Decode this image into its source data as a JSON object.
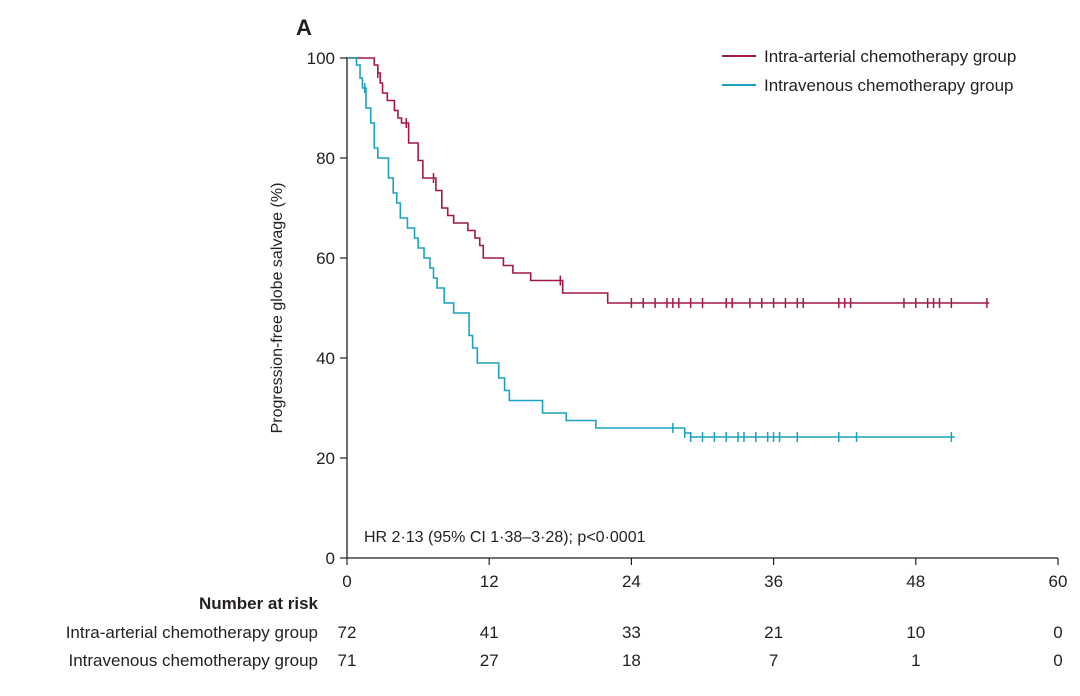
{
  "chart_data": {
    "type": "line",
    "subtype": "kaplan-meier",
    "panel_label": "A",
    "ylabel": "Progression-free globe salvage (%)",
    "xlabel": "",
    "xlim": [
      0,
      60
    ],
    "ylim": [
      0,
      100
    ],
    "x_ticks": [
      "0",
      "12",
      "24",
      "36",
      "48",
      "60"
    ],
    "y_ticks": [
      "0",
      "20",
      "40",
      "60",
      "80",
      "100"
    ],
    "grid": false,
    "legend_position": "top-right",
    "annotation": "HR 2·13 (95% CI 1·38–3·28); p<0·0001",
    "series": [
      {
        "name": "Intra-arterial chemotherapy group",
        "color": "#a3174a",
        "steps": [
          [
            0,
            100
          ],
          [
            2.3,
            98.6
          ],
          [
            2.6,
            97
          ],
          [
            2.8,
            95
          ],
          [
            3,
            93
          ],
          [
            3.4,
            91.5
          ],
          [
            4,
            89.5
          ],
          [
            4.3,
            88
          ],
          [
            4.6,
            87
          ],
          [
            5.2,
            83
          ],
          [
            6,
            79.5
          ],
          [
            6.4,
            76
          ],
          [
            7.5,
            73.5
          ],
          [
            8,
            70
          ],
          [
            8.5,
            68.5
          ],
          [
            9,
            67
          ],
          [
            10.2,
            65.5
          ],
          [
            10.8,
            64
          ],
          [
            11.2,
            62.5
          ],
          [
            11.5,
            60
          ],
          [
            13.2,
            58.5
          ],
          [
            14,
            57
          ],
          [
            15.5,
            55.5
          ],
          [
            18.2,
            53
          ],
          [
            22,
            51
          ]
        ],
        "end_x": 54.2,
        "censor_x": [
          2.6,
          5,
          7.3,
          18,
          24,
          25,
          26,
          27,
          27.5,
          28,
          29,
          30,
          32,
          32.5,
          34,
          35,
          36,
          37,
          38,
          38.5,
          41.5,
          42,
          42.5,
          47,
          48,
          49,
          49.5,
          50,
          51,
          54
        ]
      },
      {
        "name": "Intravenous chemotherapy group",
        "color": "#1aa2c0",
        "steps": [
          [
            0,
            100
          ],
          [
            0.8,
            98.6
          ],
          [
            1.1,
            96
          ],
          [
            1.3,
            94
          ],
          [
            1.6,
            90
          ],
          [
            2,
            87
          ],
          [
            2.3,
            82
          ],
          [
            2.6,
            80
          ],
          [
            3.5,
            76
          ],
          [
            3.9,
            73
          ],
          [
            4.2,
            71
          ],
          [
            4.5,
            68
          ],
          [
            5.1,
            66
          ],
          [
            5.7,
            64
          ],
          [
            6,
            62
          ],
          [
            6.5,
            60
          ],
          [
            7,
            58
          ],
          [
            7.3,
            56
          ],
          [
            7.6,
            54
          ],
          [
            8.2,
            51
          ],
          [
            9,
            49
          ],
          [
            10.3,
            44.5
          ],
          [
            10.6,
            42
          ],
          [
            11,
            39
          ],
          [
            12.8,
            36
          ],
          [
            13.3,
            33.5
          ],
          [
            13.7,
            31.5
          ],
          [
            16.5,
            29
          ],
          [
            18.5,
            27.5
          ],
          [
            21,
            26
          ],
          [
            28.5,
            25
          ],
          [
            29,
            24.2
          ]
        ],
        "end_x": 51.3,
        "censor_x": [
          1.5,
          27.5,
          28.5,
          29,
          30,
          31,
          32,
          33,
          33.5,
          34.5,
          35.5,
          36,
          36.5,
          38,
          41.5,
          43,
          51
        ]
      }
    ]
  },
  "risk_table": {
    "title": "Number at risk",
    "rows": [
      {
        "label": "Intra-arterial chemotherapy group",
        "values": [
          "72",
          "41",
          "33",
          "21",
          "10",
          "0"
        ]
      },
      {
        "label": "Intravenous chemotherapy group",
        "values": [
          "71",
          "27",
          "18",
          "7",
          "1",
          "0"
        ]
      }
    ]
  }
}
